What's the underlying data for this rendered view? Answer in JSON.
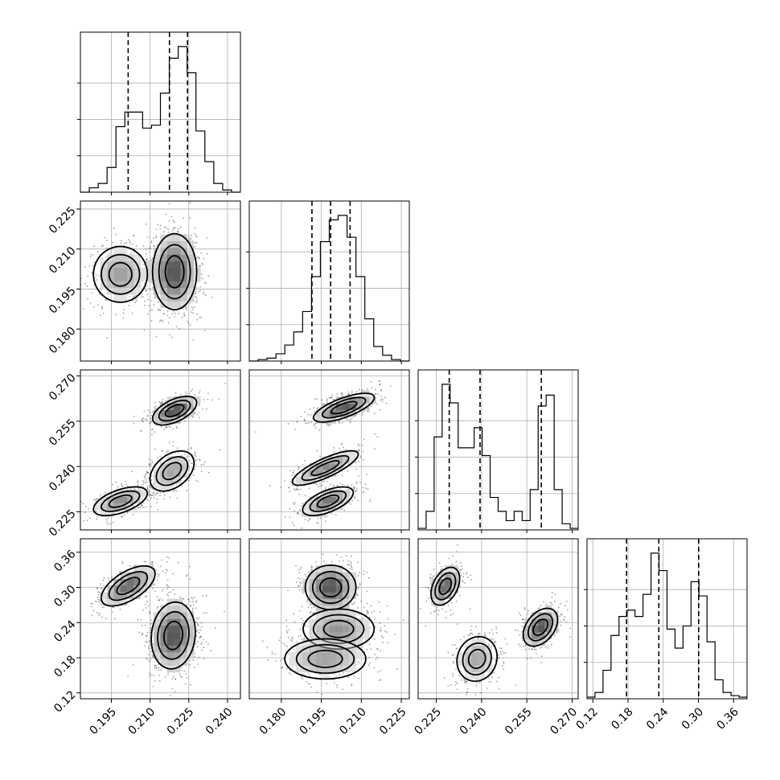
{
  "chart_data": {
    "type": "corner",
    "grid": true,
    "parameters": [
      {
        "index": 0,
        "range": [
          0.183,
          0.245
        ],
        "ticks": [
          0.195,
          0.21,
          0.225,
          0.24
        ],
        "tick_labels": [
          "0.195",
          "0.210",
          "0.225",
          "0.240"
        ],
        "histogram": [
          0,
          0.03,
          0.06,
          0.17,
          0.45,
          0.55,
          0.55,
          0.44,
          0.46,
          0.68,
          0.92,
          1.0,
          0.82,
          0.42,
          0.21,
          0.06,
          0.015,
          0
        ],
        "quantiles": [
          0.2015,
          0.2175,
          0.2245
        ]
      },
      {
        "index": 1,
        "range": [
          0.168,
          0.228
        ],
        "ticks": [
          0.18,
          0.195,
          0.21,
          0.225
        ],
        "tick_labels": [
          "0.180",
          "0.195",
          "0.210",
          "0.225"
        ],
        "histogram": [
          0,
          0.01,
          0.02,
          0.05,
          0.11,
          0.2,
          0.34,
          0.58,
          0.82,
          0.97,
          1.0,
          0.85,
          0.58,
          0.29,
          0.1,
          0.04,
          0.01,
          0
        ],
        "quantiles": [
          0.1915,
          0.1985,
          0.2058
        ]
      },
      {
        "index": 2,
        "range": [
          0.219,
          0.272
        ],
        "ticks": [
          0.225,
          0.24,
          0.255,
          0.27
        ],
        "tick_labels": [
          "0.225",
          "0.240",
          "0.255",
          "0.270"
        ],
        "histogram": [
          0.01,
          0.12,
          0.6,
          0.94,
          0.82,
          0.53,
          0.53,
          0.66,
          0.48,
          0.21,
          0.12,
          0.06,
          0.12,
          0.06,
          0.26,
          0.8,
          0.87,
          0.26,
          0.04,
          0.01
        ],
        "quantiles": [
          0.2293,
          0.2395,
          0.2598
        ]
      },
      {
        "index": 3,
        "range": [
          0.11,
          0.383
        ],
        "ticks": [
          0.12,
          0.18,
          0.24,
          0.3,
          0.36
        ],
        "tick_labels": [
          "0.12",
          "0.18",
          "0.24",
          "0.30",
          "0.36"
        ],
        "histogram": [
          0.01,
          0.04,
          0.18,
          0.4,
          0.52,
          0.56,
          0.52,
          0.66,
          0.92,
          0.81,
          0.44,
          0.32,
          0.46,
          0.74,
          0.65,
          0.36,
          0.12,
          0.04,
          0.02,
          0.01
        ],
        "quantiles": [
          0.1775,
          0.2325,
          0.3005
        ]
      }
    ],
    "pairs": [
      {
        "x": 0,
        "y": 1,
        "clusters": [
          {
            "mx": 0.1985,
            "my": 0.2005,
            "sx": 0.0055,
            "sy": 0.0055,
            "rho": 0.0,
            "w": 0.33
          },
          {
            "mx": 0.2195,
            "my": 0.2015,
            "sx": 0.0045,
            "sy": 0.0075,
            "rho": 0.0,
            "w": 0.67
          }
        ]
      },
      {
        "x": 0,
        "y": 2,
        "clusters": [
          {
            "mx": 0.1985,
            "my": 0.2285,
            "sx": 0.0055,
            "sy": 0.0025,
            "rho": 0.55,
            "w": 0.3
          },
          {
            "mx": 0.2185,
            "my": 0.2385,
            "sx": 0.0045,
            "sy": 0.0035,
            "rho": 0.4,
            "w": 0.3
          },
          {
            "mx": 0.2195,
            "my": 0.2585,
            "sx": 0.0045,
            "sy": 0.0025,
            "rho": 0.55,
            "w": 0.4
          }
        ]
      },
      {
        "x": 1,
        "y": 2,
        "clusters": [
          {
            "mx": 0.2035,
            "my": 0.2595,
            "sx": 0.006,
            "sy": 0.0025,
            "rho": 0.7,
            "w": 0.4
          },
          {
            "mx": 0.1965,
            "my": 0.2395,
            "sx": 0.0065,
            "sy": 0.003,
            "rho": 0.8,
            "w": 0.3
          },
          {
            "mx": 0.1975,
            "my": 0.2285,
            "sx": 0.005,
            "sy": 0.0025,
            "rho": 0.6,
            "w": 0.3
          }
        ]
      },
      {
        "x": 0,
        "y": 3,
        "clusters": [
          {
            "mx": 0.2015,
            "my": 0.3025,
            "sx": 0.0055,
            "sy": 0.018,
            "rho": 0.6,
            "w": 0.33
          },
          {
            "mx": 0.219,
            "my": 0.218,
            "sx": 0.0045,
            "sy": 0.03,
            "rho": 0.1,
            "w": 0.67
          }
        ]
      },
      {
        "x": 1,
        "y": 3,
        "clusters": [
          {
            "mx": 0.1985,
            "my": 0.3,
            "sx": 0.005,
            "sy": 0.02,
            "rho": 0.0,
            "w": 0.4
          },
          {
            "mx": 0.2015,
            "my": 0.229,
            "sx": 0.007,
            "sy": 0.018,
            "rho": 0.0,
            "w": 0.3
          },
          {
            "mx": 0.1965,
            "my": 0.178,
            "sx": 0.008,
            "sy": 0.018,
            "rho": 0.0,
            "w": 0.3
          }
        ]
      },
      {
        "x": 2,
        "y": 3,
        "clusters": [
          {
            "mx": 0.228,
            "my": 0.302,
            "sx": 0.0025,
            "sy": 0.017,
            "rho": 0.4,
            "w": 0.3
          },
          {
            "mx": 0.2385,
            "my": 0.178,
            "sx": 0.0035,
            "sy": 0.02,
            "rho": 0.1,
            "w": 0.3
          },
          {
            "mx": 0.2595,
            "my": 0.232,
            "sx": 0.003,
            "sy": 0.017,
            "rho": 0.4,
            "w": 0.4
          }
        ]
      }
    ]
  }
}
